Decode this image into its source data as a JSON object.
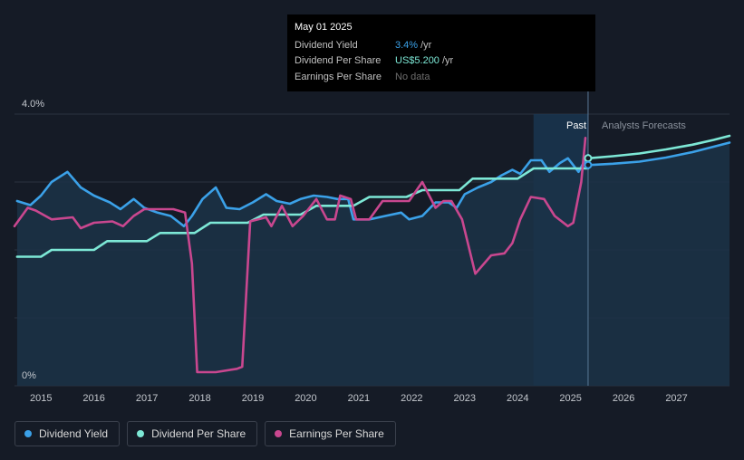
{
  "tooltip": {
    "date": "May 01 2025",
    "rows": [
      {
        "label": "Dividend Yield",
        "value": "3.4%",
        "unit": "/yr",
        "color": "#3ba1e8"
      },
      {
        "label": "Dividend Per Share",
        "value": "US$5.200",
        "unit": "/yr",
        "color": "#7de8d6"
      },
      {
        "label": "Earnings Per Share",
        "value": "No data",
        "unit": "",
        "color": "#6d6d6d"
      }
    ]
  },
  "labels": {
    "past": "Past",
    "forecast": "Analysts Forecasts"
  },
  "legend": [
    {
      "name": "Dividend Yield",
      "color": "#3ba1e8"
    },
    {
      "name": "Dividend Per Share",
      "color": "#7de8d6"
    },
    {
      "name": "Earnings Per Share",
      "color": "#c9478f"
    }
  ],
  "colors": {
    "background": "#151b26",
    "area": "#1b3248",
    "forecast_band": "#1a3a56",
    "grid": "#2c3340"
  },
  "chart_data": {
    "type": "line",
    "xlim": [
      2014.5,
      2028.0
    ],
    "ylim": [
      0,
      4.0
    ],
    "y_ticks": [
      "4.0%",
      "0%"
    ],
    "x_ticks": [
      "2015",
      "2016",
      "2017",
      "2018",
      "2019",
      "2020",
      "2021",
      "2022",
      "2023",
      "2024",
      "2025",
      "2026",
      "2027"
    ],
    "past_end": 2025.33,
    "forecast_band_start": 2024.3,
    "series": [
      {
        "name": "Dividend Yield",
        "color": "#3ba1e8",
        "area": true,
        "points": [
          [
            2014.55,
            2.72
          ],
          [
            2014.8,
            2.66
          ],
          [
            2015.0,
            2.8
          ],
          [
            2015.2,
            3.0
          ],
          [
            2015.5,
            3.15
          ],
          [
            2015.75,
            2.92
          ],
          [
            2016.0,
            2.8
          ],
          [
            2016.3,
            2.7
          ],
          [
            2016.5,
            2.6
          ],
          [
            2016.75,
            2.75
          ],
          [
            2016.95,
            2.62
          ],
          [
            2017.2,
            2.55
          ],
          [
            2017.45,
            2.5
          ],
          [
            2017.7,
            2.35
          ],
          [
            2017.85,
            2.5
          ],
          [
            2018.05,
            2.75
          ],
          [
            2018.3,
            2.92
          ],
          [
            2018.5,
            2.62
          ],
          [
            2018.75,
            2.6
          ],
          [
            2019.0,
            2.7
          ],
          [
            2019.25,
            2.82
          ],
          [
            2019.45,
            2.72
          ],
          [
            2019.7,
            2.68
          ],
          [
            2019.9,
            2.75
          ],
          [
            2020.15,
            2.8
          ],
          [
            2020.4,
            2.78
          ],
          [
            2020.6,
            2.75
          ],
          [
            2020.8,
            2.75
          ],
          [
            2020.9,
            2.45
          ],
          [
            2021.2,
            2.45
          ],
          [
            2021.5,
            2.5
          ],
          [
            2021.8,
            2.55
          ],
          [
            2021.95,
            2.45
          ],
          [
            2022.2,
            2.5
          ],
          [
            2022.45,
            2.7
          ],
          [
            2022.7,
            2.7
          ],
          [
            2022.85,
            2.62
          ],
          [
            2023.0,
            2.82
          ],
          [
            2023.25,
            2.92
          ],
          [
            2023.5,
            3.0
          ],
          [
            2023.7,
            3.1
          ],
          [
            2023.9,
            3.18
          ],
          [
            2024.05,
            3.12
          ],
          [
            2024.25,
            3.32
          ],
          [
            2024.45,
            3.32
          ],
          [
            2024.6,
            3.15
          ],
          [
            2024.8,
            3.28
          ],
          [
            2024.95,
            3.35
          ],
          [
            2025.15,
            3.15
          ],
          [
            2025.33,
            3.4
          ]
        ]
      },
      {
        "name": "Dividend Per Share",
        "color": "#7de8d6",
        "area": false,
        "points": [
          [
            2014.55,
            1.9
          ],
          [
            2015.0,
            1.9
          ],
          [
            2015.2,
            2.0
          ],
          [
            2016.0,
            2.0
          ],
          [
            2016.25,
            2.13
          ],
          [
            2016.5,
            2.13
          ],
          [
            2017.0,
            2.13
          ],
          [
            2017.25,
            2.25
          ],
          [
            2017.9,
            2.25
          ],
          [
            2018.2,
            2.4
          ],
          [
            2018.9,
            2.4
          ],
          [
            2019.2,
            2.52
          ],
          [
            2019.9,
            2.52
          ],
          [
            2020.2,
            2.65
          ],
          [
            2020.9,
            2.65
          ],
          [
            2021.2,
            2.78
          ],
          [
            2021.9,
            2.78
          ],
          [
            2022.2,
            2.88
          ],
          [
            2022.9,
            2.88
          ],
          [
            2023.15,
            3.05
          ],
          [
            2024.0,
            3.05
          ],
          [
            2024.3,
            3.2
          ],
          [
            2025.33,
            3.2
          ]
        ]
      },
      {
        "name": "Dividend Per Share forecast",
        "color": "#7de8d6",
        "area": false,
        "points": [
          [
            2025.33,
            3.35
          ],
          [
            2025.8,
            3.38
          ],
          [
            2026.3,
            3.42
          ],
          [
            2026.8,
            3.48
          ],
          [
            2027.3,
            3.55
          ],
          [
            2027.7,
            3.62
          ],
          [
            2028.0,
            3.68
          ]
        ]
      },
      {
        "name": "Dividend Yield forecast",
        "color": "#3ba1e8",
        "area": true,
        "points": [
          [
            2025.33,
            3.25
          ],
          [
            2025.8,
            3.27
          ],
          [
            2026.3,
            3.3
          ],
          [
            2026.8,
            3.36
          ],
          [
            2027.3,
            3.44
          ],
          [
            2027.7,
            3.52
          ],
          [
            2028.0,
            3.58
          ]
        ]
      },
      {
        "name": "Earnings Per Share",
        "color": "#c9478f",
        "area": false,
        "points": [
          [
            2014.5,
            2.35
          ],
          [
            2014.75,
            2.62
          ],
          [
            2014.9,
            2.58
          ],
          [
            2015.2,
            2.45
          ],
          [
            2015.6,
            2.48
          ],
          [
            2015.75,
            2.32
          ],
          [
            2016.0,
            2.4
          ],
          [
            2016.35,
            2.42
          ],
          [
            2016.55,
            2.35
          ],
          [
            2016.75,
            2.5
          ],
          [
            2016.95,
            2.6
          ],
          [
            2017.2,
            2.6
          ],
          [
            2017.5,
            2.6
          ],
          [
            2017.72,
            2.55
          ],
          [
            2017.85,
            1.8
          ],
          [
            2017.95,
            0.2
          ],
          [
            2018.3,
            0.2
          ],
          [
            2018.7,
            0.25
          ],
          [
            2018.8,
            0.28
          ],
          [
            2018.95,
            2.42
          ],
          [
            2019.25,
            2.48
          ],
          [
            2019.35,
            2.35
          ],
          [
            2019.55,
            2.65
          ],
          [
            2019.75,
            2.35
          ],
          [
            2019.95,
            2.5
          ],
          [
            2020.2,
            2.75
          ],
          [
            2020.4,
            2.45
          ],
          [
            2020.55,
            2.45
          ],
          [
            2020.65,
            2.8
          ],
          [
            2020.85,
            2.75
          ],
          [
            2020.95,
            2.45
          ],
          [
            2021.2,
            2.45
          ],
          [
            2021.45,
            2.72
          ],
          [
            2021.75,
            2.72
          ],
          [
            2021.95,
            2.72
          ],
          [
            2022.2,
            3.0
          ],
          [
            2022.45,
            2.62
          ],
          [
            2022.6,
            2.72
          ],
          [
            2022.75,
            2.72
          ],
          [
            2022.95,
            2.45
          ],
          [
            2023.2,
            1.65
          ],
          [
            2023.5,
            1.92
          ],
          [
            2023.75,
            1.95
          ],
          [
            2023.9,
            2.1
          ],
          [
            2024.05,
            2.45
          ],
          [
            2024.25,
            2.78
          ],
          [
            2024.5,
            2.75
          ],
          [
            2024.7,
            2.5
          ],
          [
            2024.95,
            2.35
          ],
          [
            2025.05,
            2.4
          ],
          [
            2025.2,
            3.0
          ],
          [
            2025.28,
            3.65
          ]
        ]
      }
    ],
    "markers": [
      {
        "x": 2025.33,
        "y": 3.35,
        "color": "#7de8d6"
      },
      {
        "x": 2025.33,
        "y": 3.25,
        "color": "#3ba1e8"
      }
    ]
  }
}
